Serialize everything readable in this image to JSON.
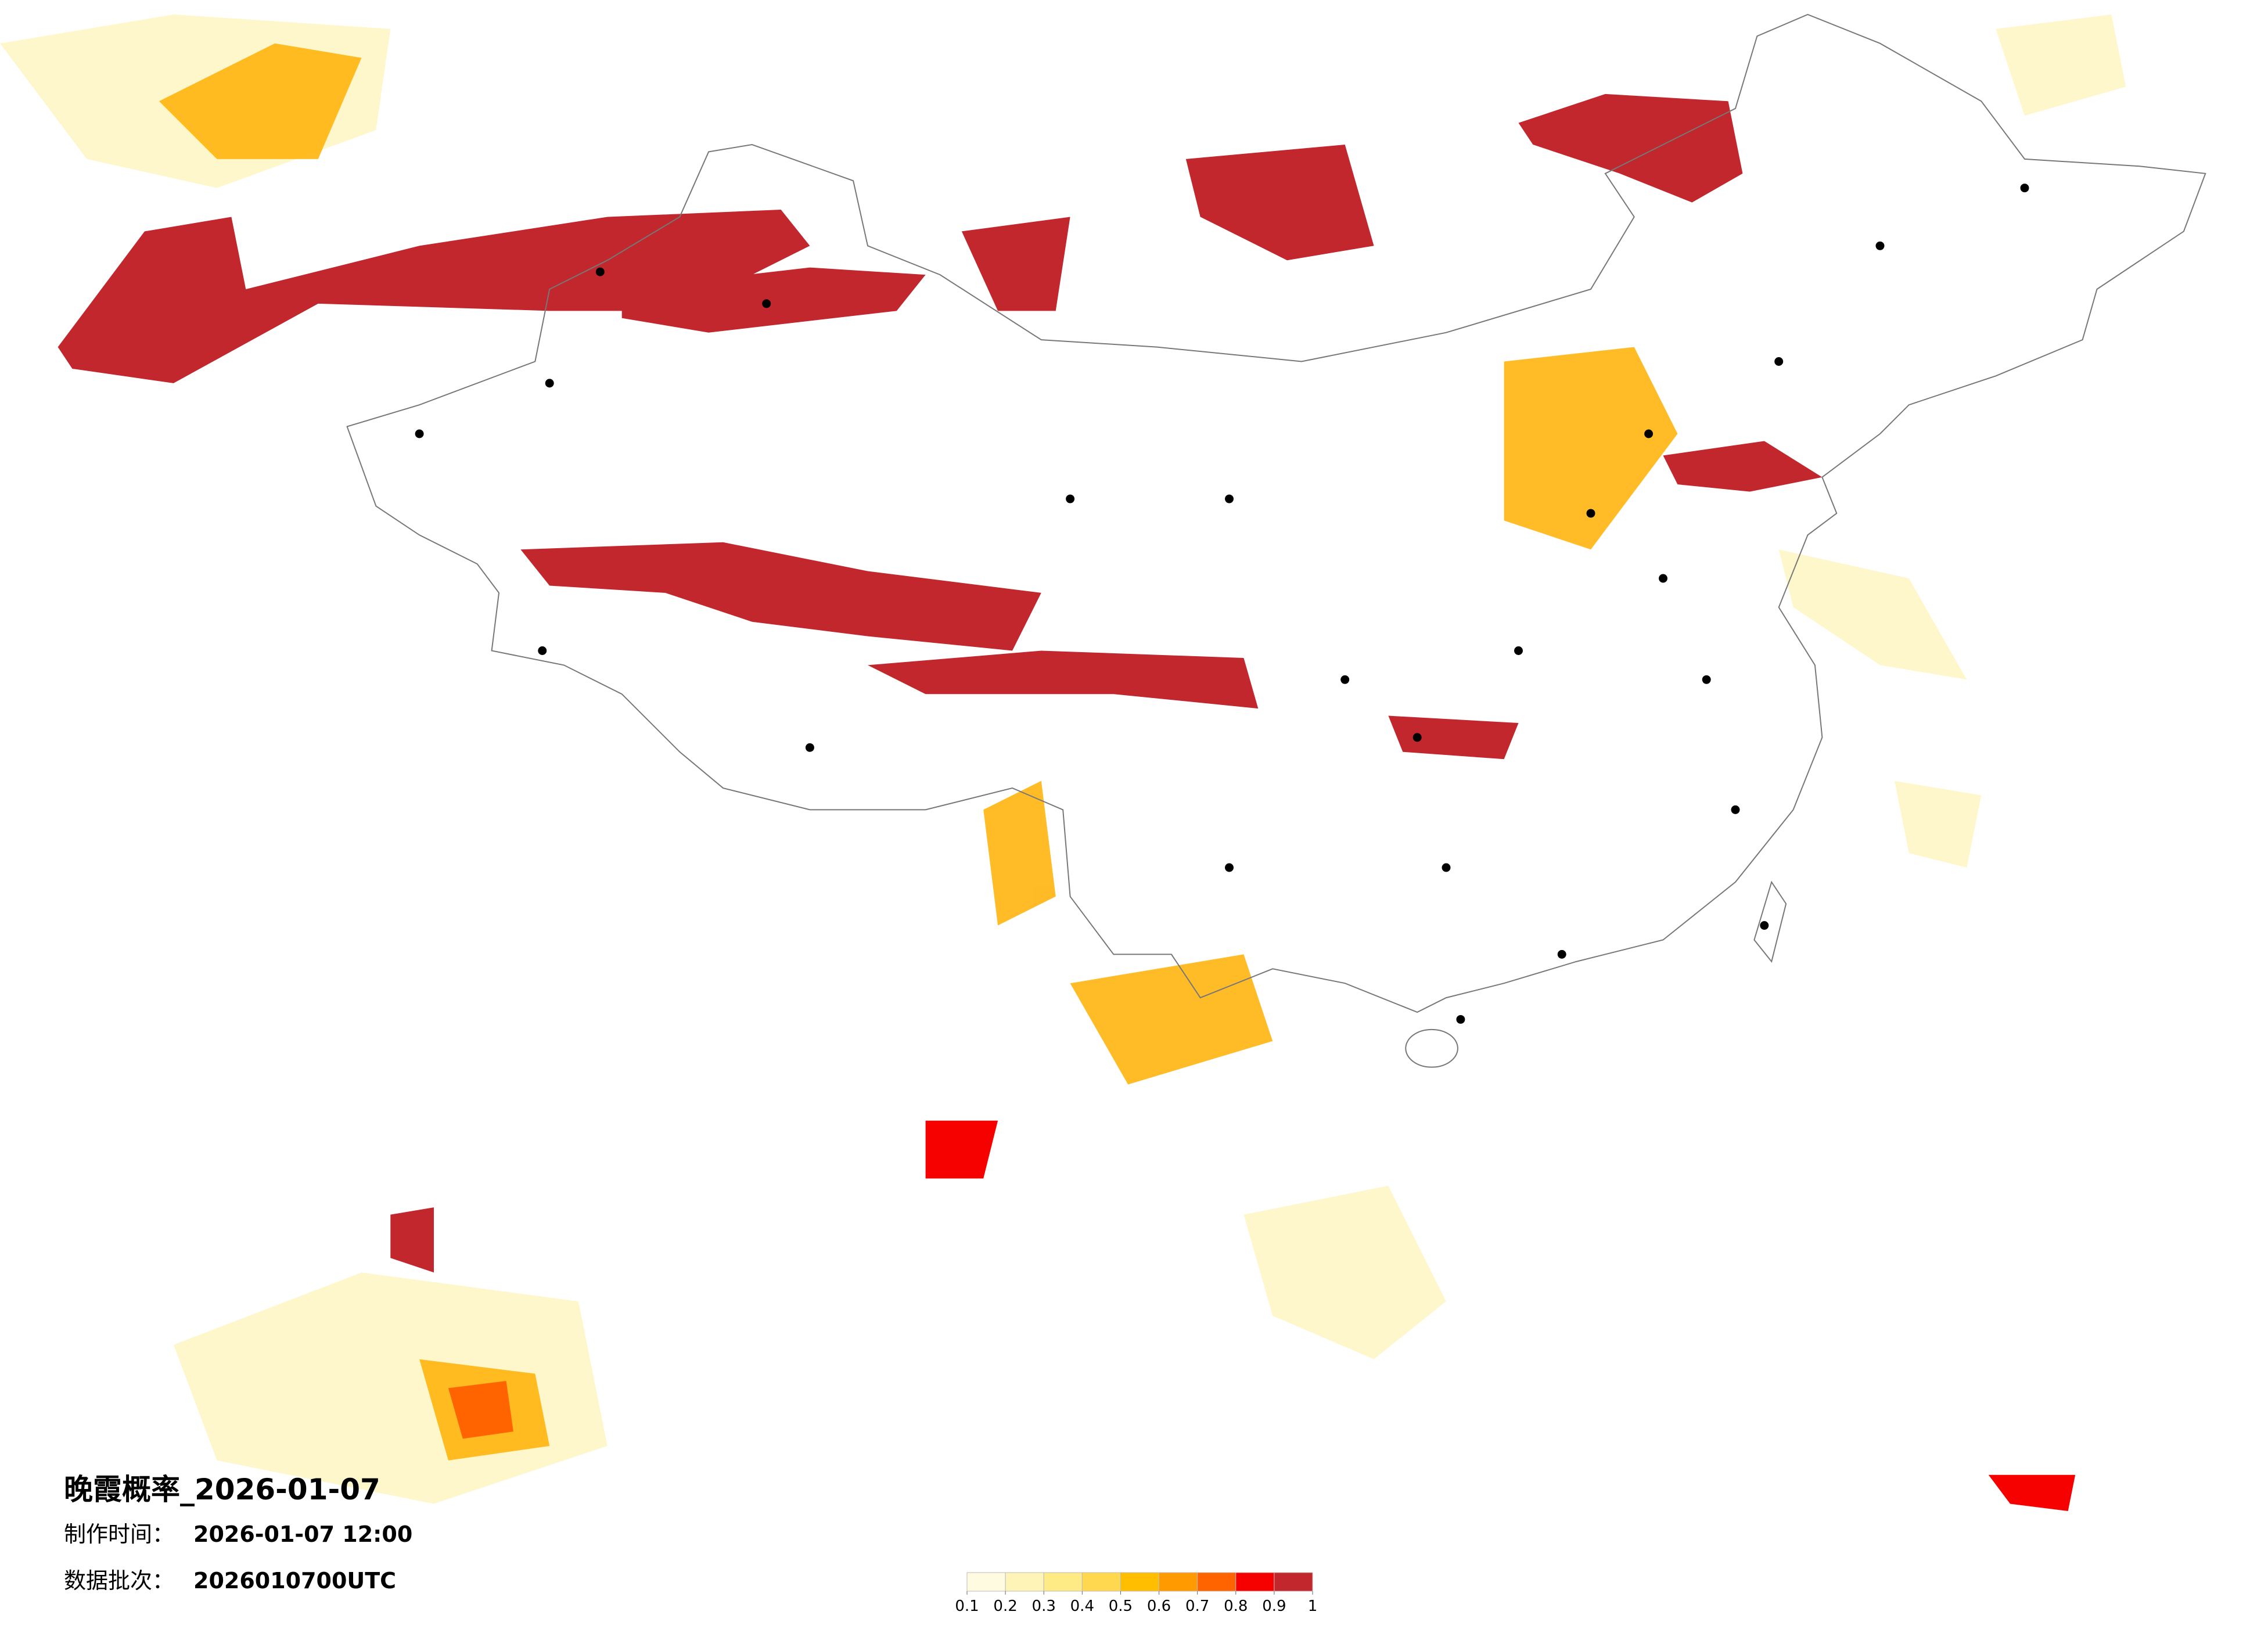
{
  "header": {
    "title": "晚霞概率_2026-01-07"
  },
  "info": {
    "production_label": "制作时间：",
    "production_time": "2026-01-07 12:00",
    "batch_label": "数据批次：",
    "batch": "2026010700UTC"
  },
  "legend": {
    "colors": [
      "#fffbe0",
      "#fff4b8",
      "#ffeb86",
      "#ffd84f",
      "#ffbe00",
      "#ff9a00",
      "#ff6400",
      "#f70000",
      "#c1272d"
    ],
    "ticks": [
      0.1,
      0.2,
      0.3,
      0.4,
      0.5,
      0.6,
      0.7,
      0.8,
      0.9,
      1
    ]
  }
}
